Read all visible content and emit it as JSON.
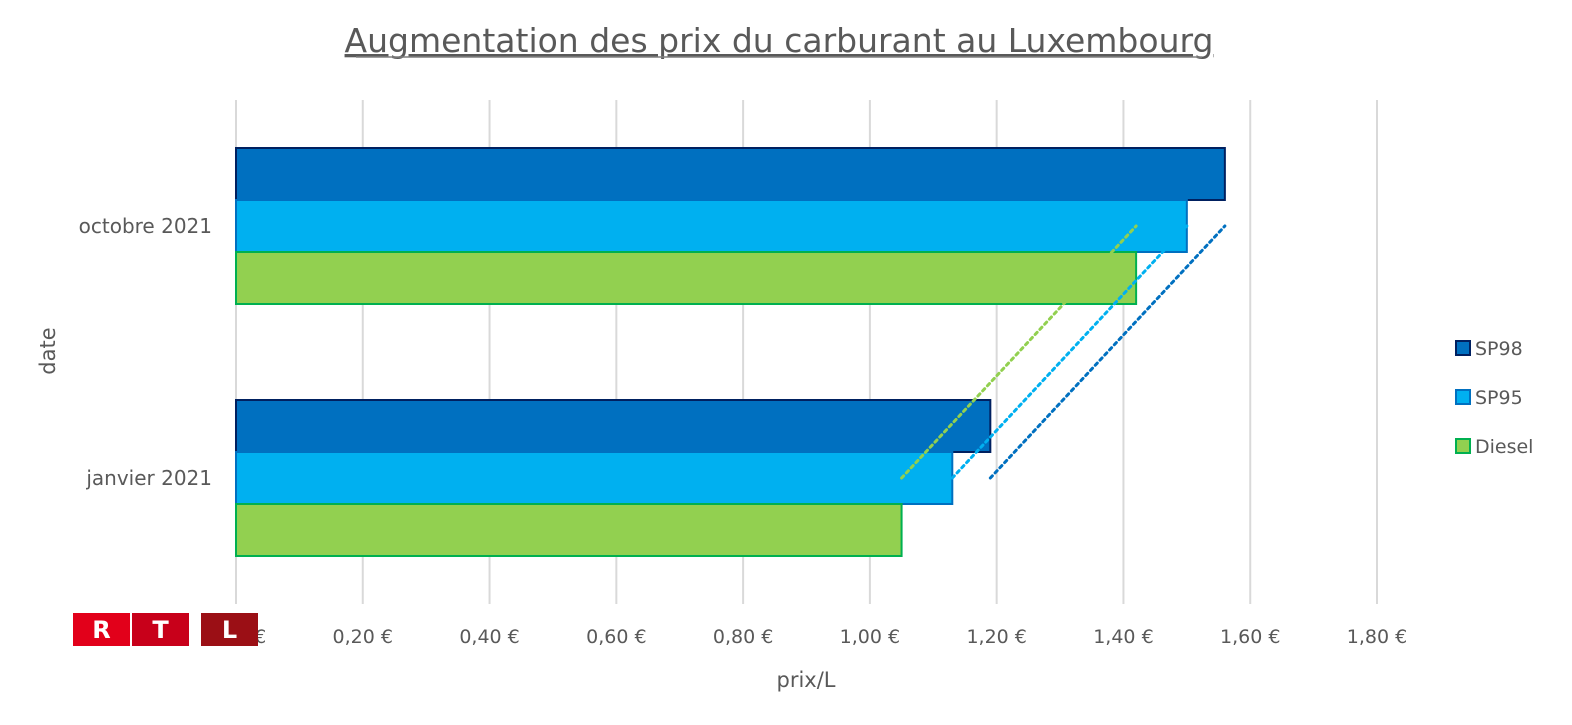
{
  "chart_data": {
    "type": "bar",
    "orientation": "horizontal",
    "title": "Augmentation des prix du carburant au Luxembourg",
    "xlabel": "prix/L",
    "ylabel": "date",
    "categories": [
      "janvier 2021",
      "octobre 2021"
    ],
    "series": [
      {
        "name": "SP98",
        "values": [
          1.19,
          1.56
        ],
        "color": "#0070C0",
        "border": "#002060"
      },
      {
        "name": "SP95",
        "values": [
          1.13,
          1.5
        ],
        "color": "#00B0F0",
        "border": "#0070C0"
      },
      {
        "name": "Diesel",
        "values": [
          1.05,
          1.42
        ],
        "color": "#92D050",
        "border": "#00B050"
      }
    ],
    "xlim": [
      0,
      1.8
    ],
    "xticks": [
      0,
      0.2,
      0.4,
      0.6,
      0.8,
      1.0,
      1.2,
      1.4,
      1.6,
      1.8
    ],
    "xtick_labels": [
      "0,00 €",
      "0,20 €",
      "0,40 €",
      "0,60 €",
      "0,80 €",
      "1,00 €",
      "1,20 €",
      "1,40 €",
      "1,60 €",
      "1,80 €"
    ],
    "grid": true,
    "legend_position": "right",
    "trendlines": "dotted, one per series"
  },
  "logo": {
    "letters": [
      "R",
      "T",
      "L"
    ],
    "colors": [
      "#E2001A",
      "#C8001A",
      "#9B0F15"
    ]
  }
}
